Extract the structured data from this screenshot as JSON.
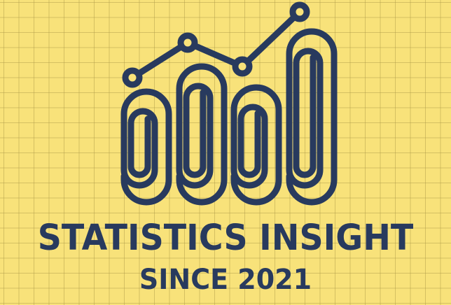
{
  "brand": {
    "title": "STATISTICS INSIGHT",
    "tagline": "SINCE 2021",
    "icon": "paperclip-bar-chart-icon"
  },
  "colors": {
    "background": "#f8e27a",
    "grid": "#b8a05a",
    "ink": "#283a5e"
  }
}
